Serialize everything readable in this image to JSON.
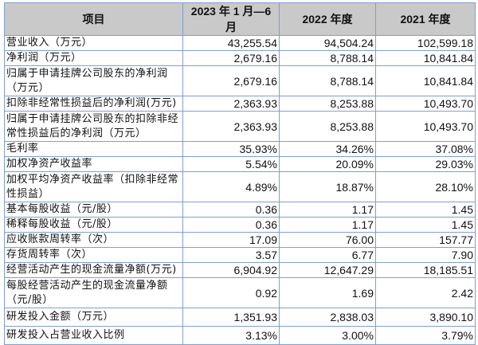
{
  "table": {
    "headers": [
      "项目",
      "2023 年 1 月—6 月",
      "2022 年度",
      "2021 年度"
    ],
    "rows": [
      {
        "label": "营业收入（万元）",
        "values": [
          "43,255.54",
          "94,504.24",
          "102,599.18"
        ],
        "type": "single"
      },
      {
        "label": "净利润（万元）",
        "values": [
          "2,679.16",
          "8,788.14",
          "10,841.84"
        ],
        "type": "single"
      },
      {
        "label": "归属于申请挂牌公司股东的净利润（万元）",
        "values": [
          "2,679.16",
          "8,788.14",
          "10,841.84"
        ],
        "type": "double"
      },
      {
        "label": "扣除非经常性损益后的净利润(万元)",
        "values": [
          "2,363.93",
          "8,253.88",
          "10,493.70"
        ],
        "type": "single"
      },
      {
        "label": "归属于申请挂牌公司股东的扣除非经常性损益后的净利润（万元）",
        "values": [
          "2,363.93",
          "8,253.88",
          "10,493.70"
        ],
        "type": "double"
      },
      {
        "label": "毛利率",
        "values": [
          "35.93%",
          "34.26%",
          "37.08%"
        ],
        "type": "single"
      },
      {
        "label": "加权净资产收益率",
        "values": [
          "5.54%",
          "20.09%",
          "29.03%"
        ],
        "type": "single"
      },
      {
        "label": "加权平均净资产收益率（扣除非经常性损益）",
        "values": [
          "4.89%",
          "18.87%",
          "28.10%"
        ],
        "type": "double"
      },
      {
        "label": "基本每股收益（元/股）",
        "values": [
          "0.36",
          "1.17",
          "1.45"
        ],
        "type": "single"
      },
      {
        "label": "稀释每股收益（元/股）",
        "values": [
          "0.36",
          "1.17",
          "1.45"
        ],
        "type": "single"
      },
      {
        "label": "应收账款周转率（次）",
        "values": [
          "17.09",
          "76.00",
          "157.77"
        ],
        "type": "single"
      },
      {
        "label": "存货周转率（次）",
        "values": [
          "3.57",
          "6.77",
          "7.90"
        ],
        "type": "single"
      },
      {
        "label": "经营活动产生的现金流量净额(万元)",
        "values": [
          "6,904.92",
          "12,647.29",
          "18,185.51"
        ],
        "type": "single"
      },
      {
        "label": "每股经营活动产生的现金流量净额（元/股）",
        "values": [
          "0.92",
          "1.69",
          "2.42"
        ],
        "type": "double"
      },
      {
        "label": "研发投入金额（万元）",
        "values": [
          "1,351.93",
          "2,838.03",
          "3,890.10"
        ],
        "type": "tall"
      },
      {
        "label": "研发投入占营业收入比例",
        "values": [
          "3.13%",
          "3.00%",
          "3.79%"
        ],
        "type": "tall"
      }
    ]
  }
}
